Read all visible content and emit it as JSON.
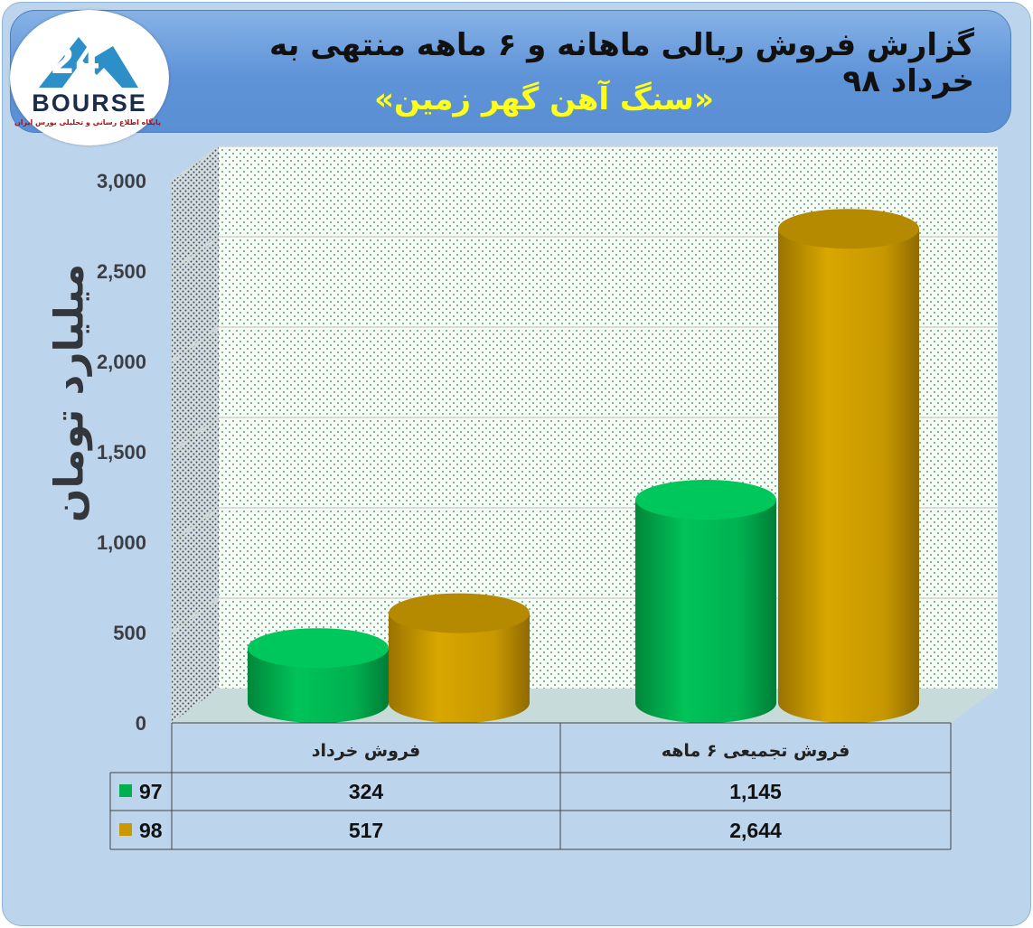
{
  "header": {
    "title": "گزارش فروش ریالی ماهانه و ۶ ماهه منتهی به خرداد ۹۸",
    "subtitle": "«سنگ آهن گهر زمین»",
    "logo_text": "BOURSE",
    "logo_tagline": "پایگاه اطلاع رسانی و تحلیلی بورس ایران"
  },
  "chart_data": {
    "type": "bar",
    "ylabel": "میلیارد تومان",
    "xlabel": "",
    "ylim": [
      0,
      3000
    ],
    "yticks": [
      "0",
      "500",
      "1,000",
      "1,500",
      "2,000",
      "2,500",
      "3,000"
    ],
    "categories": [
      "فروش خرداد",
      "فروش تجمیعی ۶ ماهه"
    ],
    "series": [
      {
        "name": "97",
        "values": [
          324,
          1145
        ],
        "value_labels": [
          "324",
          "1,145"
        ],
        "color": "#00b050"
      },
      {
        "name": "98",
        "values": [
          517,
          2644
        ],
        "value_labels": [
          "517",
          "2,644"
        ],
        "color": "#c89a00"
      }
    ],
    "grid": true,
    "legend": "data-table-left"
  }
}
